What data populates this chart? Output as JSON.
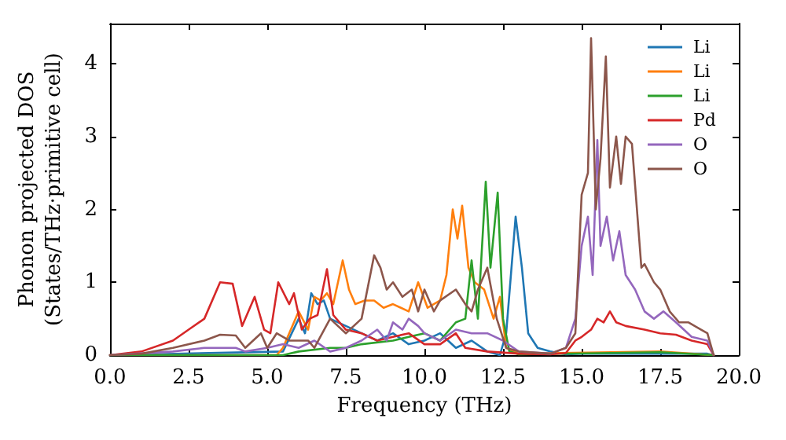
{
  "chart_data": {
    "type": "line",
    "xlabel": "Frequency (THz)",
    "ylabel": "Phonon projected DOS\n(States/THz·primitive cell)",
    "xlim": [
      0,
      20
    ],
    "xticks": [
      {
        "value": 0,
        "label": "0.0"
      },
      {
        "value": 2.5,
        "label": "2.5"
      },
      {
        "value": 5,
        "label": "5.0"
      },
      {
        "value": 7.5,
        "label": "7.5"
      },
      {
        "value": 10,
        "label": "10.0"
      },
      {
        "value": 12.5,
        "label": "12.5"
      },
      {
        "value": 15,
        "label": "15.0"
      },
      {
        "value": 17.5,
        "label": "17.5"
      },
      {
        "value": 20,
        "label": "20.0"
      }
    ],
    "ylim": [
      0,
      4.55
    ],
    "yticks": [
      0,
      1,
      2,
      3,
      4
    ],
    "grid": false,
    "legend": "top right",
    "marker": "none",
    "line_style": "solid",
    "series": [
      {
        "name": "Li",
        "color": "#1f77b4",
        "x": [
          0,
          5.5,
          6.0,
          6.2,
          6.4,
          6.6,
          6.8,
          7.0,
          7.5,
          8.0,
          8.5,
          9.0,
          9.5,
          10.0,
          10.5,
          11.0,
          11.5,
          12.0,
          12.4,
          12.6,
          12.9,
          13.1,
          13.3,
          13.6,
          14.0,
          14.5,
          15.0,
          19.0,
          19.2
        ],
        "values": [
          0,
          0.05,
          0.5,
          0.3,
          0.85,
          0.7,
          0.75,
          0.5,
          0.4,
          0.3,
          0.2,
          0.3,
          0.15,
          0.2,
          0.3,
          0.1,
          0.2,
          0.05,
          0,
          0.3,
          1.9,
          1.2,
          0.3,
          0.1,
          0.05,
          0.01,
          0.02,
          0.02,
          0
        ]
      },
      {
        "name": "Li",
        "color": "#ff7f0e",
        "x": [
          0,
          5.3,
          5.5,
          6.0,
          6.3,
          6.5,
          6.7,
          6.9,
          7.1,
          7.4,
          7.6,
          7.8,
          8.1,
          8.4,
          8.7,
          9.0,
          9.5,
          9.8,
          10.1,
          10.5,
          10.7,
          10.9,
          11.05,
          11.2,
          11.4,
          11.6,
          11.9,
          12.2,
          12.4,
          12.6,
          13.0,
          17.5,
          19.2
        ],
        "values": [
          0,
          0,
          0.1,
          0.6,
          0.35,
          0.8,
          0.75,
          0.85,
          0.7,
          1.3,
          0.9,
          0.7,
          0.75,
          0.75,
          0.65,
          0.7,
          0.6,
          1.0,
          0.65,
          0.75,
          1.1,
          2.0,
          1.6,
          2.05,
          1.2,
          1.0,
          0.9,
          0.5,
          0.8,
          0.1,
          0.02,
          0.05,
          0
        ]
      },
      {
        "name": "Li",
        "color": "#2ca02c",
        "x": [
          0,
          5.5,
          6.0,
          7.0,
          7.5,
          8.0,
          9.0,
          9.5,
          10.0,
          10.5,
          11.0,
          11.3,
          11.5,
          11.7,
          11.95,
          12.1,
          12.33,
          12.5,
          12.7,
          13.0,
          17.5,
          19.2
        ],
        "values": [
          0,
          0,
          0.05,
          0.1,
          0.1,
          0.15,
          0.2,
          0.25,
          0.3,
          0.2,
          0.45,
          0.5,
          1.3,
          0.5,
          2.38,
          1.2,
          2.23,
          0.5,
          0.05,
          0.01,
          0.04,
          0
        ]
      },
      {
        "name": "Pd",
        "color": "#d62728",
        "x": [
          0,
          1,
          2,
          2.5,
          3,
          3.5,
          3.9,
          4.2,
          4.6,
          4.9,
          5.1,
          5.35,
          5.7,
          5.85,
          6.1,
          6.35,
          6.6,
          6.9,
          7.1,
          7.5,
          8,
          8.5,
          9,
          9.5,
          10,
          10.5,
          11.0,
          11.3,
          12,
          13,
          14,
          14.5,
          14.8,
          15.0,
          15.3,
          15.5,
          15.7,
          15.9,
          16.1,
          16.4,
          17,
          17.5,
          18,
          18.5,
          19,
          19.2
        ],
        "values": [
          0,
          0.05,
          0.2,
          0.35,
          0.5,
          1.0,
          0.98,
          0.4,
          0.8,
          0.35,
          0.3,
          1.0,
          0.7,
          0.85,
          0.35,
          0.5,
          0.55,
          1.18,
          0.55,
          0.35,
          0.3,
          0.2,
          0.25,
          0.3,
          0.15,
          0.15,
          0.3,
          0.1,
          0.05,
          0.02,
          0.01,
          0.03,
          0.2,
          0.25,
          0.35,
          0.5,
          0.45,
          0.6,
          0.45,
          0.4,
          0.35,
          0.3,
          0.28,
          0.2,
          0.15,
          0
        ]
      },
      {
        "name": "O",
        "color": "#9467bd",
        "x": [
          0,
          2,
          3,
          4,
          4.3,
          5,
          5.5,
          6,
          6.5,
          7,
          7.5,
          8,
          8.5,
          8.8,
          9.0,
          9.3,
          9.5,
          9.8,
          10.0,
          10.5,
          11.0,
          11.5,
          12.0,
          12.5,
          13,
          14,
          14.5,
          14.8,
          15.0,
          15.2,
          15.35,
          15.5,
          15.6,
          15.8,
          16.0,
          16.2,
          16.4,
          16.7,
          17.0,
          17.3,
          17.6,
          18.0,
          18.5,
          19,
          19.2
        ],
        "values": [
          0,
          0.05,
          0.1,
          0.1,
          0.05,
          0.1,
          0.15,
          0.1,
          0.2,
          0.05,
          0.1,
          0.2,
          0.35,
          0.2,
          0.45,
          0.35,
          0.5,
          0.4,
          0.3,
          0.2,
          0.35,
          0.3,
          0.3,
          0.2,
          0.05,
          0.02,
          0.1,
          0.5,
          1.5,
          1.9,
          1.1,
          2.95,
          1.5,
          1.9,
          1.3,
          1.7,
          1.1,
          0.9,
          0.6,
          0.5,
          0.6,
          0.45,
          0.25,
          0.2,
          0
        ]
      },
      {
        "name": "O",
        "color": "#8c564b",
        "x": [
          0,
          1,
          2,
          3,
          3.5,
          4.0,
          4.3,
          4.8,
          5.0,
          5.3,
          5.7,
          6.0,
          6.3,
          6.5,
          7.0,
          7.5,
          8.0,
          8.4,
          8.6,
          8.8,
          9.0,
          9.3,
          9.6,
          9.8,
          10.0,
          10.3,
          10.5,
          11.0,
          11.3,
          11.5,
          11.7,
          12.0,
          12.3,
          12.6,
          13.0,
          14.0,
          14.5,
          14.8,
          15.0,
          15.2,
          15.3,
          15.45,
          15.6,
          15.77,
          15.9,
          16.1,
          16.25,
          16.4,
          16.6,
          16.9,
          17.0,
          17.3,
          17.5,
          17.8,
          18.1,
          18.4,
          18.8,
          19.0,
          19.2
        ],
        "values": [
          0,
          0.02,
          0.1,
          0.2,
          0.28,
          0.27,
          0.1,
          0.3,
          0.1,
          0.3,
          0.2,
          0.2,
          0.2,
          0.1,
          0.5,
          0.3,
          0.5,
          1.37,
          1.2,
          0.9,
          1.0,
          0.8,
          0.9,
          0.6,
          0.9,
          0.6,
          0.75,
          0.9,
          0.7,
          0.6,
          0.9,
          1.2,
          0.5,
          0.1,
          0.05,
          0.02,
          0.1,
          0.3,
          2.2,
          2.5,
          4.35,
          2.0,
          2.7,
          4.1,
          2.3,
          3.0,
          2.35,
          3.0,
          2.9,
          1.2,
          1.25,
          1.0,
          0.9,
          0.6,
          0.45,
          0.45,
          0.35,
          0.3,
          0
        ]
      }
    ]
  }
}
